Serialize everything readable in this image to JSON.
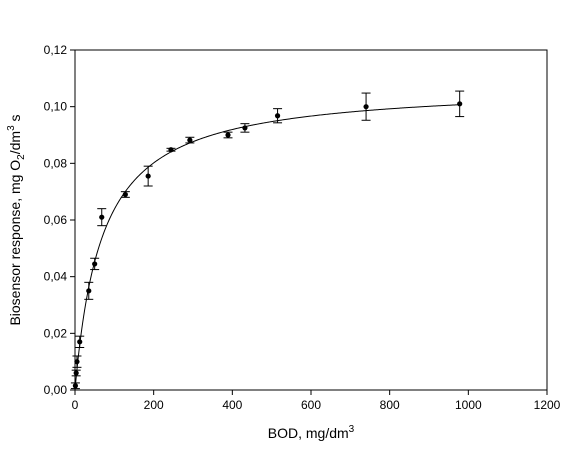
{
  "chart_data": {
    "type": "scatter",
    "title": "",
    "xlabel": {
      "text": "BOD, mg/dm",
      "sup": "3"
    },
    "ylabel": {
      "parts": [
        {
          "t": "Biosensor response, mg O",
          "s": ""
        },
        {
          "t": "2",
          "s": "sub"
        },
        {
          "t": "/dm",
          "s": ""
        },
        {
          "t": "3",
          "s": "sup"
        },
        {
          "t": " s",
          "s": ""
        }
      ]
    },
    "xlim": [
      0,
      1200
    ],
    "ylim": [
      0,
      0.12
    ],
    "x_ticks": [
      0,
      200,
      400,
      600,
      800,
      1000,
      1200
    ],
    "y_ticks": [
      0,
      0.02,
      0.04,
      0.06,
      0.08,
      0.1,
      0.12
    ],
    "x_tick_labels": [
      "0",
      "200",
      "400",
      "600",
      "800",
      "1000",
      "1200"
    ],
    "y_tick_labels": [
      "0,00",
      "0,02",
      "0,04",
      "0,06",
      "0,08",
      "0,10",
      "0,12"
    ],
    "grid": false,
    "series": [
      {
        "points": [
          {
            "x": 1,
            "y": 0.0015,
            "err": 0.001
          },
          {
            "x": 3,
            "y": 0.006,
            "err": 0.001
          },
          {
            "x": 5,
            "y": 0.01,
            "err": 0.002
          },
          {
            "x": 12,
            "y": 0.017,
            "err": 0.002
          },
          {
            "x": 35,
            "y": 0.035,
            "err": 0.003
          },
          {
            "x": 50,
            "y": 0.0445,
            "err": 0.002
          },
          {
            "x": 68,
            "y": 0.061,
            "err": 0.003
          },
          {
            "x": 128,
            "y": 0.069,
            "err": 0.001
          },
          {
            "x": 186,
            "y": 0.0755,
            "err": 0.0035
          },
          {
            "x": 244,
            "y": 0.0848,
            "err": 0.0005
          },
          {
            "x": 292,
            "y": 0.0882,
            "err": 0.001
          },
          {
            "x": 389,
            "y": 0.09,
            "err": 0.001
          },
          {
            "x": 432,
            "y": 0.0925,
            "err": 0.0015
          },
          {
            "x": 515,
            "y": 0.0968,
            "err": 0.0025
          },
          {
            "x": 740,
            "y": 0.1,
            "err": 0.0048
          },
          {
            "x": 978,
            "y": 0.101,
            "err": 0.0045
          }
        ]
      }
    ],
    "fit_curve": {
      "type": "hyperbola",
      "vmax": 0.1078,
      "km": 69,
      "x_range": [
        0,
        980
      ]
    }
  }
}
